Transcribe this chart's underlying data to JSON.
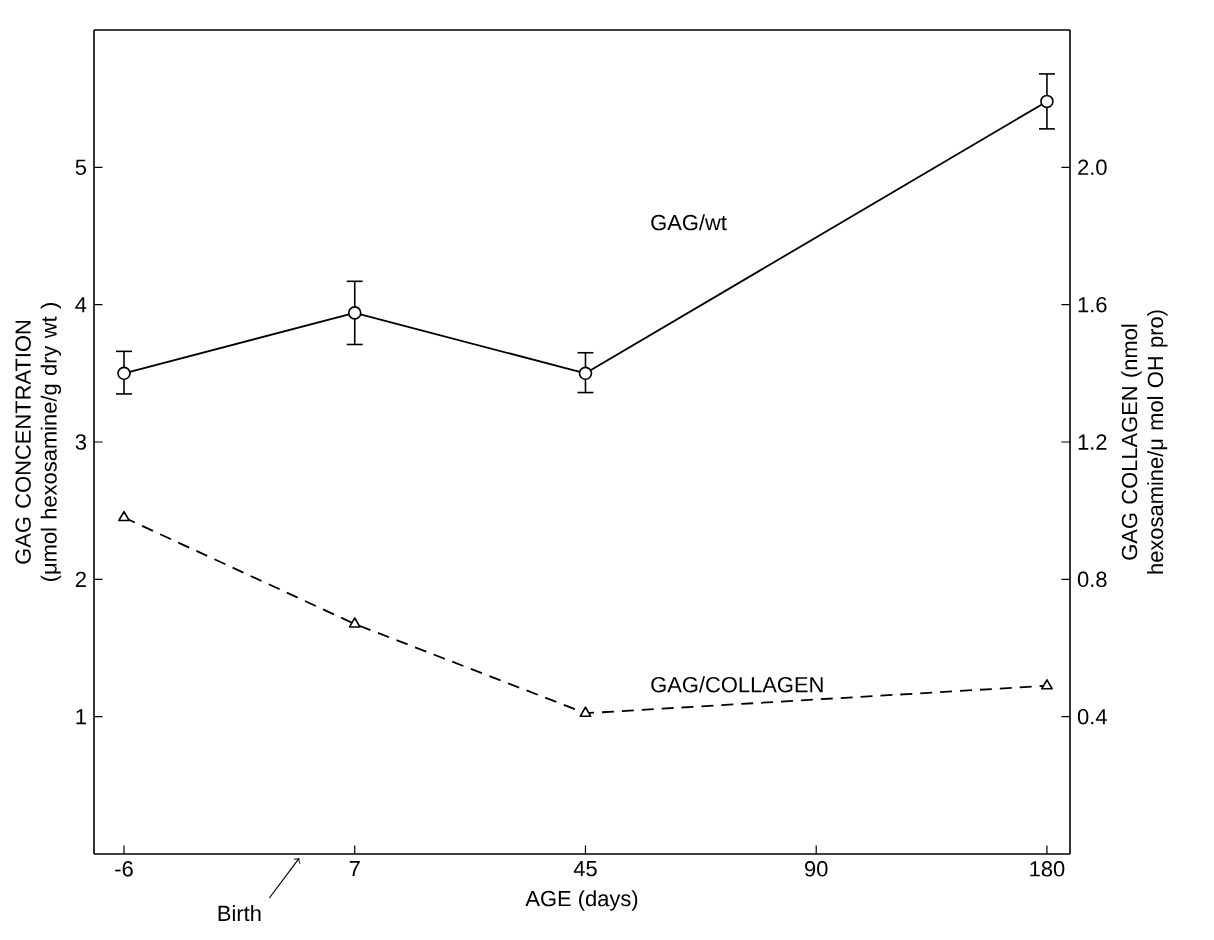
{
  "chart_data": {
    "type": "line",
    "xlabel": "AGE (days)",
    "ylabel": "GAG CONCENTRATION (μmol hexosamine/g dry wt )",
    "y2label": "GAG COLLAGEN (nmol hexosamine/μ mol OH pro)",
    "categories": [
      "-6",
      "7",
      "45",
      "90",
      "180"
    ],
    "series": [
      {
        "name": "GAG/wt",
        "color": "#000000",
        "marker": "circle",
        "line_style": "solid",
        "values": [
          3.5,
          3.94,
          3.5,
          null,
          5.48
        ],
        "errors": [
          [
            3.35,
            3.66
          ],
          [
            3.71,
            4.17
          ],
          [
            3.36,
            3.65
          ],
          null,
          [
            5.28,
            5.68
          ]
        ]
      },
      {
        "name": "GAG/COLLAGEN",
        "color": "#000000",
        "marker": "triangle",
        "line_style": "dashed",
        "axis": "y2",
        "values": [
          0.98,
          0.67,
          0.41,
          null,
          0.49
        ]
      }
    ],
    "ylim": [
      0,
      6
    ],
    "yticks": [
      1,
      2,
      3,
      4,
      5
    ],
    "y2lim": [
      0,
      2.4
    ],
    "y2ticks": [
      {
        "value": 0.4,
        "label": "0.4"
      },
      {
        "value": 0.8,
        "label": "0.8"
      },
      {
        "value": 1.2,
        "label": "1.2"
      },
      {
        "value": 1.6,
        "label": "1.6"
      },
      {
        "value": 2,
        "label": "2.0"
      }
    ],
    "annotations": [
      "Birth"
    ]
  }
}
